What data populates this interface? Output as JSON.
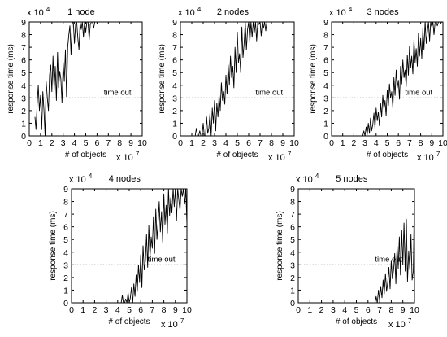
{
  "figure": {
    "x_multiplier": "x 10",
    "x_multiplier_exp": "7",
    "y_multiplier": "x 10",
    "y_multiplier_exp": "4"
  },
  "chart_data": [
    {
      "type": "line",
      "title": "1 node",
      "xlabel": "# of objects",
      "ylabel": "response time (ms)",
      "annotation": "time out",
      "xlim": [
        0,
        10
      ],
      "ylim": [
        0,
        9
      ],
      "x_ticks": [
        "0",
        "1",
        "2",
        "3",
        "4",
        "5",
        "6",
        "7",
        "8",
        "9",
        "10"
      ],
      "y_ticks": [
        "0",
        "1",
        "2",
        "3",
        "4",
        "5",
        "6",
        "7",
        "8",
        "9"
      ],
      "timeout": 3,
      "series": [
        {
          "x": [
            0.5,
            0.6,
            0.7,
            0.8,
            0.9,
            1.0,
            1.1,
            1.2,
            1.3,
            1.4,
            1.5,
            1.6,
            1.7,
            1.8,
            1.9,
            2.0,
            2.1,
            2.2,
            2.3,
            2.4,
            2.5,
            2.6,
            2.7,
            2.8,
            2.9,
            3.0,
            3.1,
            3.2,
            3.3,
            3.4,
            3.5,
            3.6,
            3.7,
            3.8,
            3.9,
            4.0,
            4.1,
            4.2,
            4.3,
            4.4,
            4.5,
            4.6,
            4.7,
            4.8,
            4.9,
            5.0,
            5.1,
            5.2,
            5.3,
            5.4,
            5.5,
            5.6,
            5.7,
            5.8,
            5.9,
            6.0,
            6.1,
            6.2
          ],
          "y": [
            1.5,
            0.5,
            2.5,
            4,
            2,
            3.2,
            0.5,
            3.5,
            2,
            0,
            4.3,
            3,
            2,
            4.8,
            5.6,
            3.5,
            6.3,
            3.6,
            5.5,
            2.8,
            6.6,
            3.8,
            5.1,
            4.5,
            2.6,
            5.8,
            4.3,
            6.8,
            3.1,
            7,
            8,
            8.7,
            6.4,
            8.9,
            9,
            7.3,
            8.8,
            9,
            7.7,
            6.8,
            9,
            8.4,
            9,
            7.8,
            9,
            8.2,
            9,
            9,
            7.6,
            8.8,
            9,
            9,
            8.5,
            9,
            9,
            9,
            9,
            9
          ]
        }
      ]
    },
    {
      "type": "line",
      "title": "2 nodes",
      "xlabel": "# of objects",
      "ylabel": "response time (ms)",
      "annotation": "time out",
      "xlim": [
        0,
        10
      ],
      "ylim": [
        0,
        9
      ],
      "x_ticks": [
        "0",
        "1",
        "2",
        "3",
        "4",
        "5",
        "6",
        "7",
        "8",
        "9",
        "10"
      ],
      "y_ticks": [
        "0",
        "1",
        "2",
        "3",
        "4",
        "5",
        "6",
        "7",
        "8",
        "9"
      ],
      "timeout": 3,
      "series": [
        {
          "x": [
            1.3,
            1.4,
            1.5,
            1.6,
            1.7,
            1.8,
            1.9,
            2.0,
            2.1,
            2.2,
            2.3,
            2.4,
            2.5,
            2.6,
            2.7,
            2.8,
            2.9,
            3.0,
            3.1,
            3.2,
            3.3,
            3.4,
            3.5,
            3.6,
            3.7,
            3.8,
            3.9,
            4.0,
            4.1,
            4.2,
            4.3,
            4.4,
            4.5,
            4.6,
            4.7,
            4.8,
            4.9,
            5.0,
            5.1,
            5.2,
            5.3,
            5.4,
            5.5,
            5.6,
            5.7,
            5.8,
            5.9,
            6.0,
            6.1,
            6.2,
            6.3,
            6.4,
            6.5,
            6.6,
            6.7,
            6.8,
            6.9,
            7.0,
            7.1,
            7.2,
            7.3,
            7.4,
            7.5,
            7.6,
            7.7,
            7.8,
            7.9
          ],
          "y": [
            0,
            0.6,
            0,
            0,
            0.4,
            0,
            0,
            1,
            0,
            0,
            1.5,
            0.2,
            0.6,
            1.8,
            0,
            2.2,
            1,
            2.8,
            0.4,
            2.6,
            1.5,
            3.2,
            2,
            4.2,
            2.8,
            3.5,
            2.5,
            4.8,
            3.3,
            5.6,
            4,
            6.3,
            4.6,
            5.5,
            3.8,
            7,
            5,
            8.2,
            5.8,
            6.5,
            5,
            8.6,
            6.2,
            7.3,
            9,
            6.8,
            8.4,
            9,
            7.4,
            9,
            7.8,
            9,
            8.2,
            9,
            7.5,
            9,
            8.8,
            9,
            7.9,
            9,
            8.5,
            9,
            8.3,
            9,
            9,
            9,
            9
          ]
        }
      ]
    },
    {
      "type": "line",
      "title": "3 nodes",
      "xlabel": "# of objects",
      "ylabel": "response time (ms)",
      "annotation": "time out",
      "xlim": [
        0,
        10
      ],
      "ylim": [
        0,
        9
      ],
      "x_ticks": [
        "0",
        "1",
        "2",
        "3",
        "4",
        "5",
        "6",
        "7",
        "8",
        "9",
        "10"
      ],
      "y_ticks": [
        "0",
        "1",
        "2",
        "3",
        "4",
        "5",
        "6",
        "7",
        "8",
        "9"
      ],
      "timeout": 3,
      "series": [
        {
          "x": [
            2.8,
            2.9,
            3.0,
            3.1,
            3.2,
            3.3,
            3.4,
            3.5,
            3.6,
            3.7,
            3.8,
            3.9,
            4.0,
            4.1,
            4.2,
            4.3,
            4.4,
            4.5,
            4.6,
            4.7,
            4.8,
            4.9,
            5.0,
            5.1,
            5.2,
            5.3,
            5.4,
            5.5,
            5.6,
            5.7,
            5.8,
            5.9,
            6.0,
            6.1,
            6.2,
            6.3,
            6.4,
            6.5,
            6.6,
            6.7,
            6.8,
            6.9,
            7.0,
            7.1,
            7.2,
            7.3,
            7.4,
            7.5,
            7.6,
            7.7,
            7.8,
            7.9,
            8.0,
            8.1,
            8.2,
            8.3,
            8.4,
            8.5,
            8.6,
            8.7,
            8.8,
            8.9,
            9.0,
            9.1,
            9.2,
            9.3,
            9.4,
            9.5,
            9.6,
            9.7,
            9.8,
            9.9,
            10.0
          ],
          "y": [
            0,
            0.4,
            0,
            0.7,
            0.1,
            1,
            0.2,
            1.4,
            0.4,
            0.9,
            1.8,
            0.6,
            2.2,
            1.2,
            1.9,
            0.8,
            2.6,
            1.5,
            3.2,
            2.1,
            2.8,
            1.6,
            3.6,
            2.4,
            4.1,
            3,
            3.5,
            2.2,
            4.6,
            3.2,
            5.2,
            3.8,
            4.4,
            2.9,
            5.5,
            4.1,
            6,
            4.6,
            5.2,
            3.9,
            6.4,
            4.8,
            7.1,
            5.4,
            6.3,
            4.9,
            7.6,
            5.8,
            6.9,
            5.5,
            8.1,
            6.3,
            7.7,
            6.1,
            8.5,
            6.8,
            9,
            7.3,
            8.2,
            9,
            7.5,
            9,
            8.6,
            9,
            8,
            9,
            9,
            8.7,
            9,
            9,
            8.9,
            9,
            9
          ]
        }
      ]
    },
    {
      "type": "line",
      "title": "4 nodes",
      "xlabel": "# of objects",
      "ylabel": "response time (ms)",
      "annotation": "time out",
      "xlim": [
        0,
        10
      ],
      "ylim": [
        0,
        9
      ],
      "x_ticks": [
        "0",
        "1",
        "2",
        "3",
        "4",
        "5",
        "6",
        "7",
        "8",
        "9",
        "10"
      ],
      "y_ticks": [
        "0",
        "1",
        "2",
        "3",
        "4",
        "5",
        "6",
        "7",
        "8",
        "9"
      ],
      "timeout": 3,
      "series": [
        {
          "x": [
            4.3,
            4.4,
            4.5,
            4.6,
            4.7,
            4.8,
            4.9,
            5.0,
            5.1,
            5.2,
            5.3,
            5.4,
            5.5,
            5.6,
            5.7,
            5.8,
            5.9,
            6.0,
            6.1,
            6.2,
            6.3,
            6.4,
            6.5,
            6.6,
            6.7,
            6.8,
            6.9,
            7.0,
            7.1,
            7.2,
            7.3,
            7.4,
            7.5,
            7.6,
            7.7,
            7.8,
            7.9,
            8.0,
            8.1,
            8.2,
            8.3,
            8.4,
            8.5,
            8.6,
            8.7,
            8.8,
            8.9,
            9.0,
            9.1,
            9.2,
            9.3,
            9.4,
            9.5,
            9.6,
            9.7,
            9.8,
            9.9,
            10.0
          ],
          "y": [
            0,
            0.6,
            0,
            0,
            0.3,
            0,
            0.8,
            0,
            0.4,
            1.2,
            0,
            1.5,
            0.5,
            2.2,
            0.9,
            3,
            1.6,
            3.8,
            1.2,
            4.5,
            2.6,
            3.3,
            5.4,
            2.8,
            6.1,
            3.6,
            5.2,
            4.3,
            6.8,
            3.9,
            7.4,
            5,
            6.3,
            8,
            5.6,
            7.2,
            4.8,
            8.6,
            6.2,
            7.7,
            5.5,
            9,
            6.9,
            8.3,
            7.1,
            9,
            7.6,
            9,
            6.5,
            9,
            8.1,
            7.3,
            9,
            8.4,
            9,
            7.8,
            9,
            6.2
          ]
        }
      ]
    },
    {
      "type": "line",
      "title": "5 nodes",
      "xlabel": "# of objects",
      "ylabel": "response time (ms)",
      "annotation": "time out",
      "xlim": [
        0,
        10
      ],
      "ylim": [
        0,
        9
      ],
      "x_ticks": [
        "0",
        "1",
        "2",
        "3",
        "4",
        "5",
        "6",
        "7",
        "8",
        "9",
        "10"
      ],
      "y_ticks": [
        "0",
        "1",
        "2",
        "3",
        "4",
        "5",
        "6",
        "7",
        "8",
        "9"
      ],
      "timeout": 3,
      "series": [
        {
          "x": [
            6.6,
            6.7,
            6.8,
            6.9,
            7.0,
            7.1,
            7.2,
            7.3,
            7.4,
            7.5,
            7.6,
            7.7,
            7.8,
            7.9,
            8.0,
            8.1,
            8.2,
            8.3,
            8.4,
            8.5,
            8.6,
            8.7,
            8.8,
            8.9,
            9.0,
            9.1,
            9.2,
            9.3,
            9.4,
            9.5,
            9.6,
            9.7,
            9.8,
            9.9,
            10.0
          ],
          "y": [
            0,
            0.5,
            0,
            1,
            0.2,
            1.3,
            0.4,
            1.8,
            0.7,
            2.3,
            0.9,
            1.6,
            2.8,
            1.1,
            3.3,
            1.9,
            2.6,
            3.9,
            1.5,
            4.5,
            2.7,
            5.2,
            2.2,
            5.7,
            3,
            6.3,
            2.5,
            6.6,
            1.7,
            4.1,
            2.6,
            5.4,
            1.8,
            2.5,
            9
          ]
        }
      ]
    }
  ]
}
